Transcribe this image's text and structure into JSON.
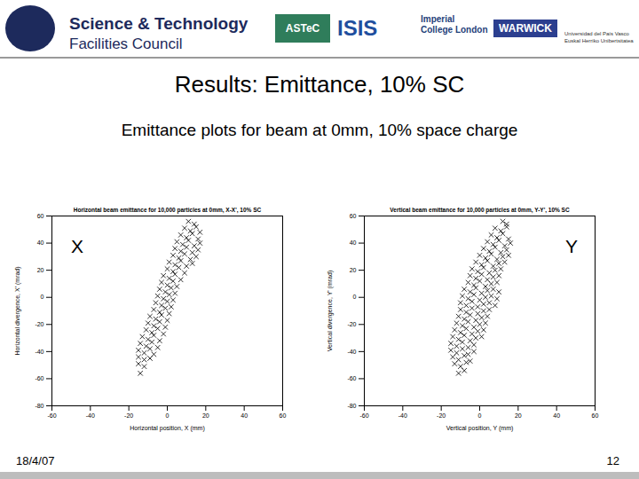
{
  "header": {
    "logos": [
      "Science & Technology",
      "Facilities Council",
      "ASTeC",
      "ISIS",
      "Imperial College London",
      "WARWICK",
      "Universidad del País Vasco Euskal Herriko Unibertsitatea"
    ]
  },
  "title": "Results: Emittance, 10% SC",
  "subtitle": "Emittance plots for beam at 0mm, 10% space charge",
  "panel_labels": [
    "X",
    "Y"
  ],
  "footer": {
    "date": "18/4/07",
    "page": "12"
  },
  "chart_data": [
    {
      "type": "scatter",
      "title": "Horizontal beam emittance for 10,000 particles at 0mm, X-X', 10% SC",
      "xlabel": "Horizontal position, X (mm)",
      "ylabel": "Horizontal divergence, X' (mrad)",
      "color": "#000000",
      "marker": "x",
      "xlim": [
        -60,
        60
      ],
      "xticks": [
        -60,
        -40,
        -20,
        0,
        20,
        40,
        60
      ],
      "ylim": [
        -80,
        60
      ],
      "yticks": [
        -80,
        -60,
        -40,
        -20,
        0,
        20,
        40,
        60
      ],
      "x": [
        11,
        14,
        9,
        12,
        15,
        17,
        7,
        10,
        13,
        16,
        5,
        8,
        11,
        14,
        17,
        4,
        7,
        10,
        13,
        16,
        3,
        6,
        9,
        12,
        15,
        1,
        4,
        7,
        10,
        13,
        0,
        3,
        6,
        9,
        -2,
        1,
        4,
        7,
        -3,
        0,
        3,
        5,
        -4,
        -1,
        2,
        4,
        -5,
        -2,
        1,
        3,
        -6,
        -3,
        0,
        2,
        -7,
        -4,
        -1,
        1,
        -9,
        -6,
        -3,
        0,
        -10,
        -7,
        -4,
        -1,
        -11,
        -8,
        -5,
        -2,
        -13,
        -10,
        -7,
        -4,
        -14,
        -11,
        -8,
        -5,
        -15,
        -12,
        -9,
        -7,
        -15,
        -12,
        -9,
        -15,
        -12,
        -14
      ],
      "values": [
        56,
        54,
        51,
        49,
        52,
        48,
        46,
        44,
        47,
        43,
        41,
        39,
        42,
        38,
        40,
        36,
        34,
        37,
        33,
        35,
        31,
        29,
        32,
        28,
        30,
        26,
        24,
        27,
        23,
        25,
        21,
        19,
        22,
        18,
        16,
        14,
        17,
        13,
        11,
        9,
        12,
        8,
        6,
        4,
        7,
        3,
        1,
        -1,
        2,
        -2,
        -4,
        -6,
        -3,
        -7,
        -9,
        -11,
        -8,
        -12,
        -14,
        -16,
        -13,
        -17,
        -19,
        -21,
        -18,
        -22,
        -24,
        -26,
        -23,
        -27,
        -29,
        -31,
        -28,
        -32,
        -34,
        -36,
        -33,
        -37,
        -39,
        -41,
        -38,
        -42,
        -44,
        -46,
        -45,
        -49,
        -51,
        -56
      ]
    },
    {
      "type": "scatter",
      "title": "Vertical beam emittance for 10,000 particles at 0mm, Y-Y', 10% SC",
      "xlabel": "Vertical position, Y (mm)",
      "ylabel": "Vertical divergence, Y' (mrad)",
      "color": "#000000",
      "marker": "x",
      "xlim": [
        -60,
        60
      ],
      "xticks": [
        -60,
        -40,
        -20,
        0,
        20,
        40,
        60
      ],
      "ylim": [
        -80,
        60
      ],
      "yticks": [
        -80,
        -60,
        -40,
        -20,
        0,
        20,
        40,
        60
      ],
      "x": [
        12,
        14,
        8,
        11,
        14,
        6,
        9,
        12,
        15,
        4,
        7,
        10,
        13,
        16,
        2,
        5,
        8,
        11,
        14,
        0,
        3,
        6,
        9,
        12,
        15,
        -2,
        1,
        4,
        7,
        10,
        13,
        -4,
        -1,
        2,
        5,
        8,
        11,
        -5,
        -2,
        1,
        4,
        7,
        10,
        -6,
        -3,
        0,
        3,
        6,
        9,
        -8,
        -5,
        -2,
        1,
        4,
        7,
        10,
        -9,
        -6,
        -3,
        0,
        3,
        6,
        9,
        -10,
        -7,
        -4,
        -1,
        2,
        5,
        8,
        -10,
        -7,
        -4,
        -1,
        2,
        5,
        -11,
        -8,
        -5,
        -2,
        1,
        4,
        -12,
        -9,
        -6,
        -3,
        0,
        3,
        -13,
        -10,
        -7,
        -4,
        -1,
        2,
        -14,
        -11,
        -8,
        -5,
        -2,
        1,
        -15,
        -12,
        -9,
        -6,
        -3,
        -15,
        -12,
        -9,
        -6,
        -3,
        -14,
        -11,
        -8,
        -5,
        -13,
        -10,
        -7,
        -11,
        -8
      ],
      "values": [
        56,
        54,
        51,
        49,
        52,
        46,
        44,
        47,
        43,
        41,
        39,
        42,
        38,
        40,
        36,
        34,
        37,
        33,
        35,
        31,
        29,
        32,
        28,
        30,
        31,
        26,
        24,
        27,
        23,
        25,
        26,
        21,
        19,
        22,
        18,
        20,
        21,
        16,
        14,
        17,
        13,
        15,
        16,
        11,
        9,
        12,
        8,
        10,
        11,
        6,
        4,
        7,
        3,
        5,
        6,
        4,
        1,
        -1,
        2,
        -2,
        0,
        1,
        -1,
        -4,
        -6,
        -3,
        -7,
        -5,
        -4,
        -6,
        -9,
        -11,
        -8,
        -12,
        -10,
        -9,
        -14,
        -16,
        -13,
        -17,
        -15,
        -14,
        -19,
        -21,
        -18,
        -22,
        -20,
        -19,
        -24,
        -26,
        -23,
        -27,
        -25,
        -24,
        -29,
        -31,
        -28,
        -32,
        -30,
        -29,
        -34,
        -36,
        -33,
        -37,
        -35,
        -39,
        -41,
        -38,
        -42,
        -40,
        -44,
        -46,
        -43,
        -47,
        -49,
        -51,
        -48,
        -56,
        -54
      ]
    }
  ]
}
